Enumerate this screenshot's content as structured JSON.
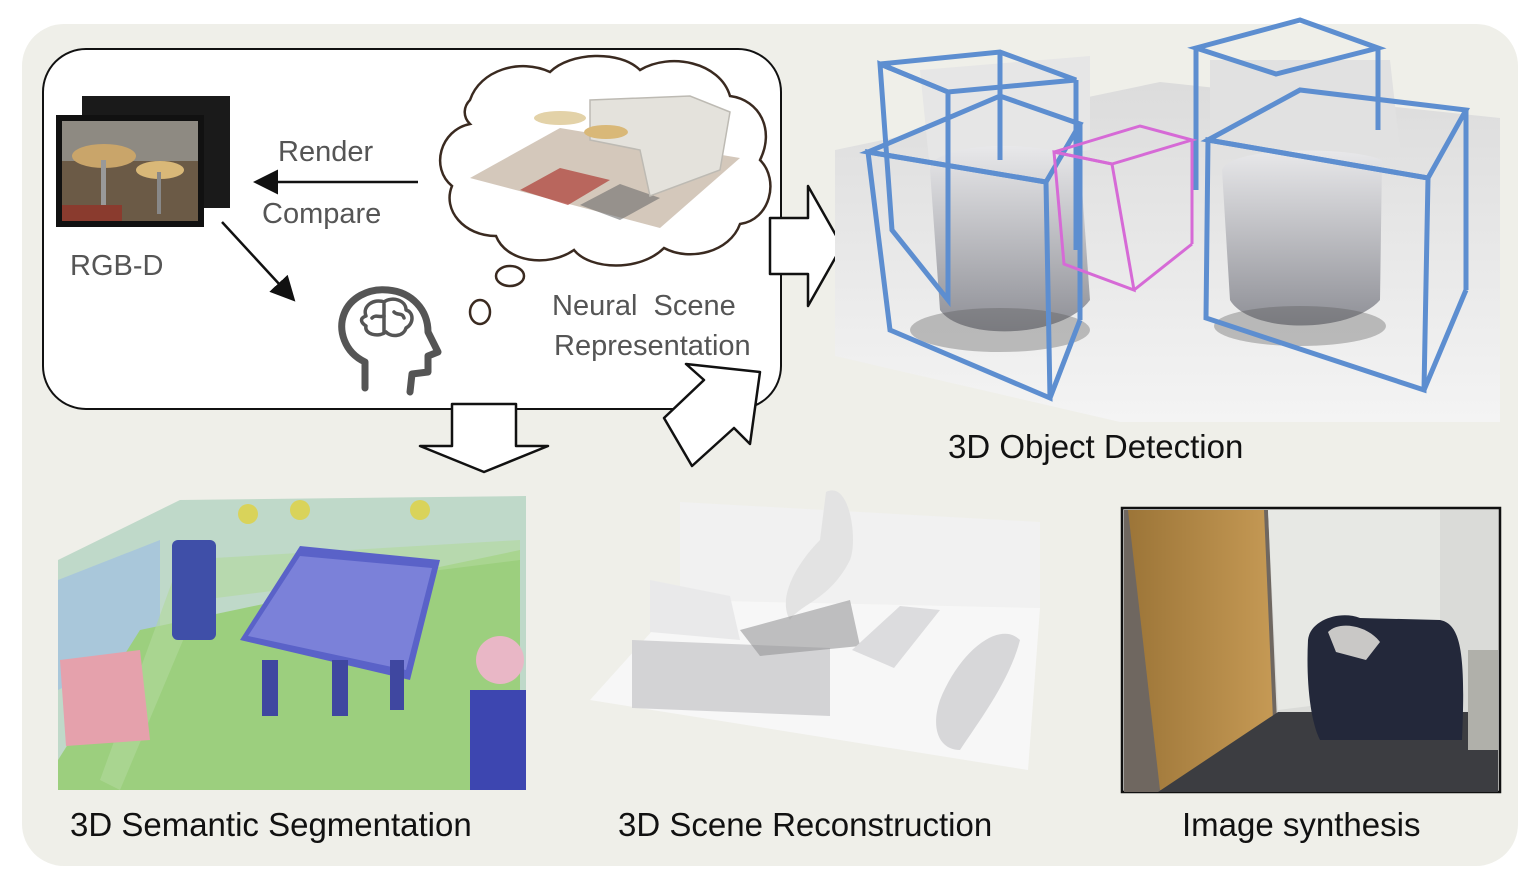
{
  "pipeline": {
    "render_label": "Render",
    "compare_label": "Compare",
    "input_label": "RGB-D",
    "neural_label_line1": "Neural  Scene",
    "neural_label_line2": "Representation"
  },
  "outputs": {
    "detection": "3D Object Detection",
    "segmentation": "3D Semantic Segmentation",
    "reconstruction": "3D Scene Reconstruction",
    "synthesis": "Image synthesis"
  },
  "colors": {
    "panel_bg": "#efefe9",
    "box_blue": "#5d8ed0",
    "box_magenta": "#d66ad6",
    "label_gray": "#555555"
  },
  "icons": [
    "head-brain-icon",
    "thought-cloud-icon",
    "arrow-icon"
  ]
}
